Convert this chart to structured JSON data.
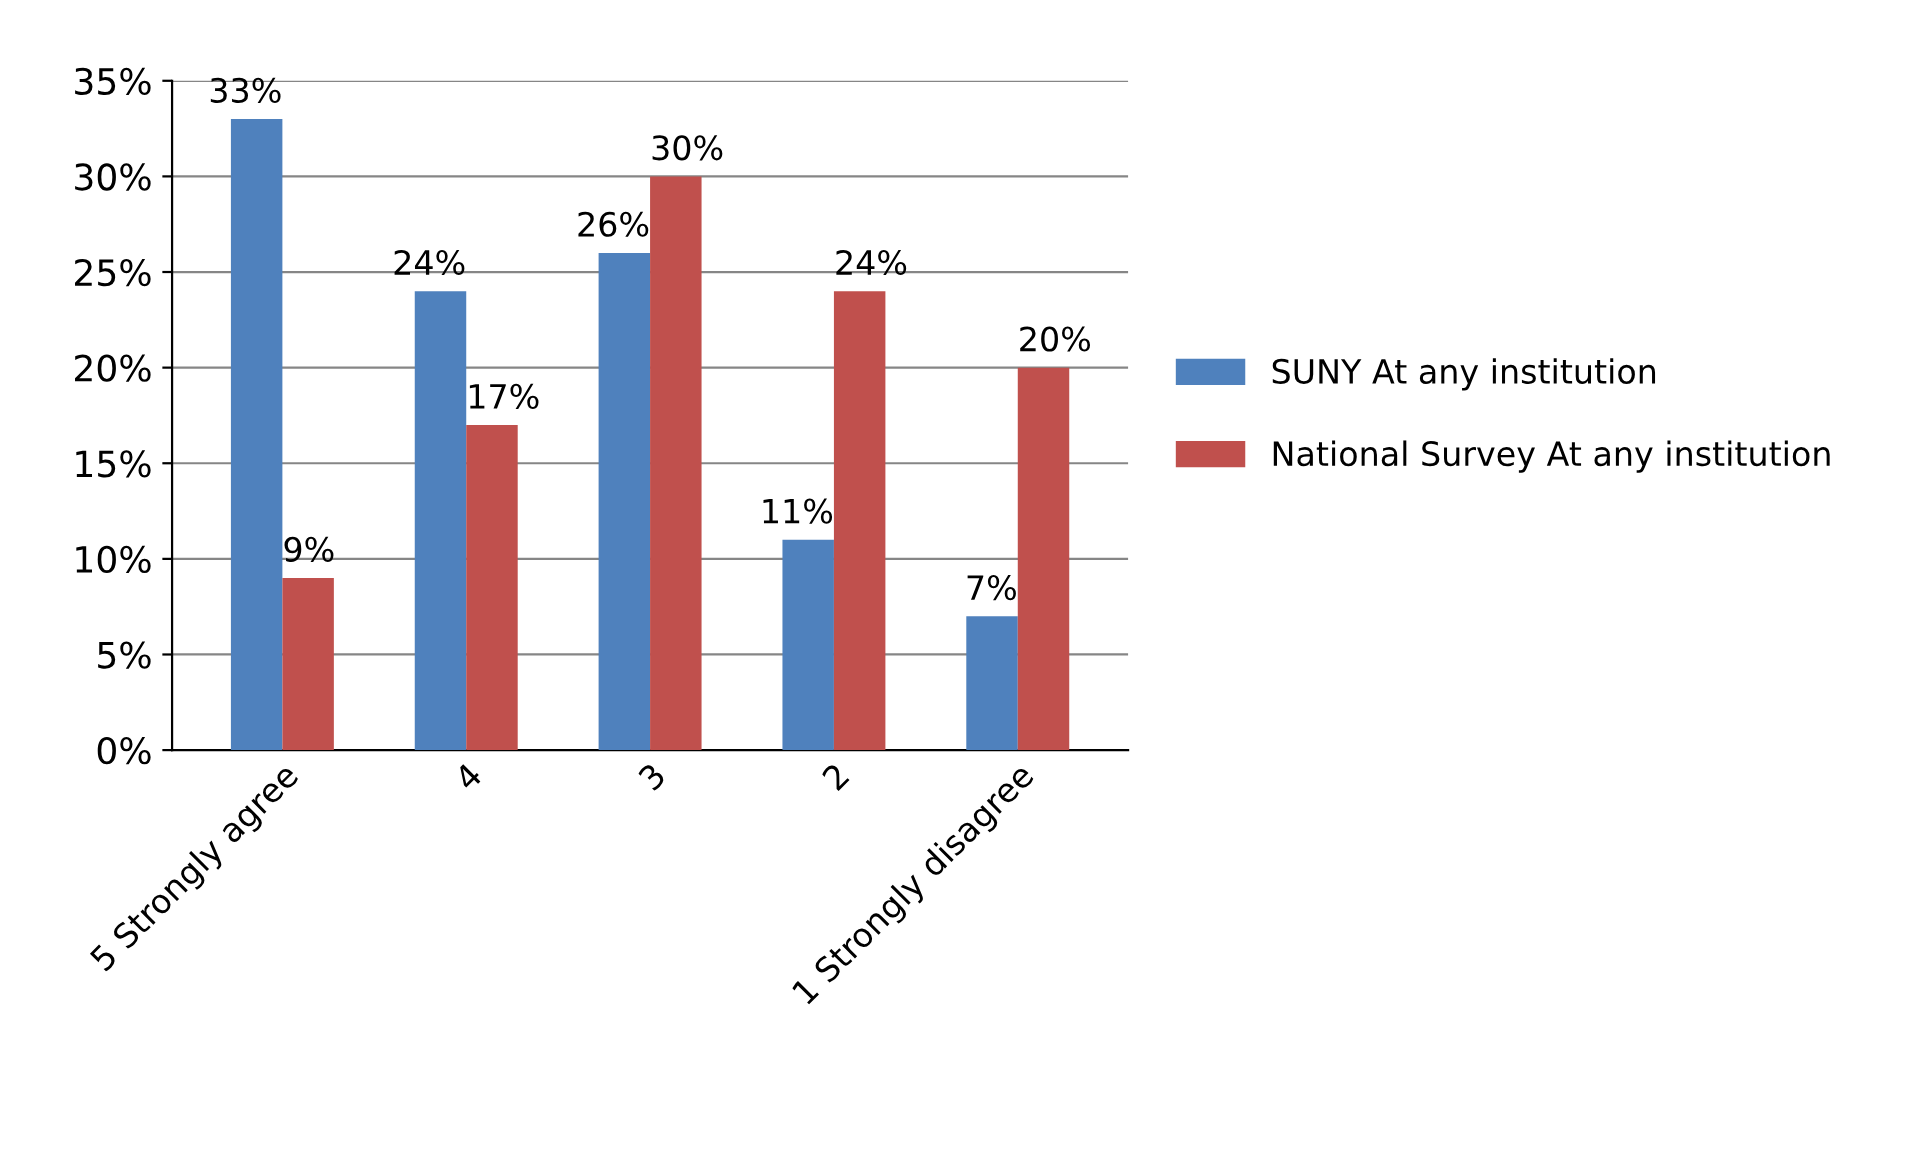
{
  "chart_data": {
    "type": "bar",
    "categories": [
      "5 Strongly agree",
      "4",
      "3",
      "2",
      "1 Strongly disagree"
    ],
    "series": [
      {
        "name": "SUNY At any institution",
        "color": "#4f81bd",
        "values": [
          33,
          24,
          26,
          11,
          7
        ],
        "value_labels": [
          "33%",
          "24%",
          "26%",
          "11%",
          "7%"
        ]
      },
      {
        "name": "National Survey At any institution",
        "color": "#c0504d",
        "values": [
          9,
          17,
          30,
          24,
          20
        ],
        "value_labels": [
          "9%",
          "17%",
          "30%",
          "24%",
          "20%"
        ]
      }
    ],
    "ylim": [
      0,
      35
    ],
    "yticks": [
      {
        "value": 0,
        "label": "0%"
      },
      {
        "value": 5,
        "label": "5%"
      },
      {
        "value": 10,
        "label": "10%"
      },
      {
        "value": 15,
        "label": "15%"
      },
      {
        "value": 20,
        "label": "20%"
      },
      {
        "value": 25,
        "label": "25%"
      },
      {
        "value": 30,
        "label": "30%"
      },
      {
        "value": 35,
        "label": "35%"
      }
    ],
    "grid": "y",
    "legend": "right"
  }
}
